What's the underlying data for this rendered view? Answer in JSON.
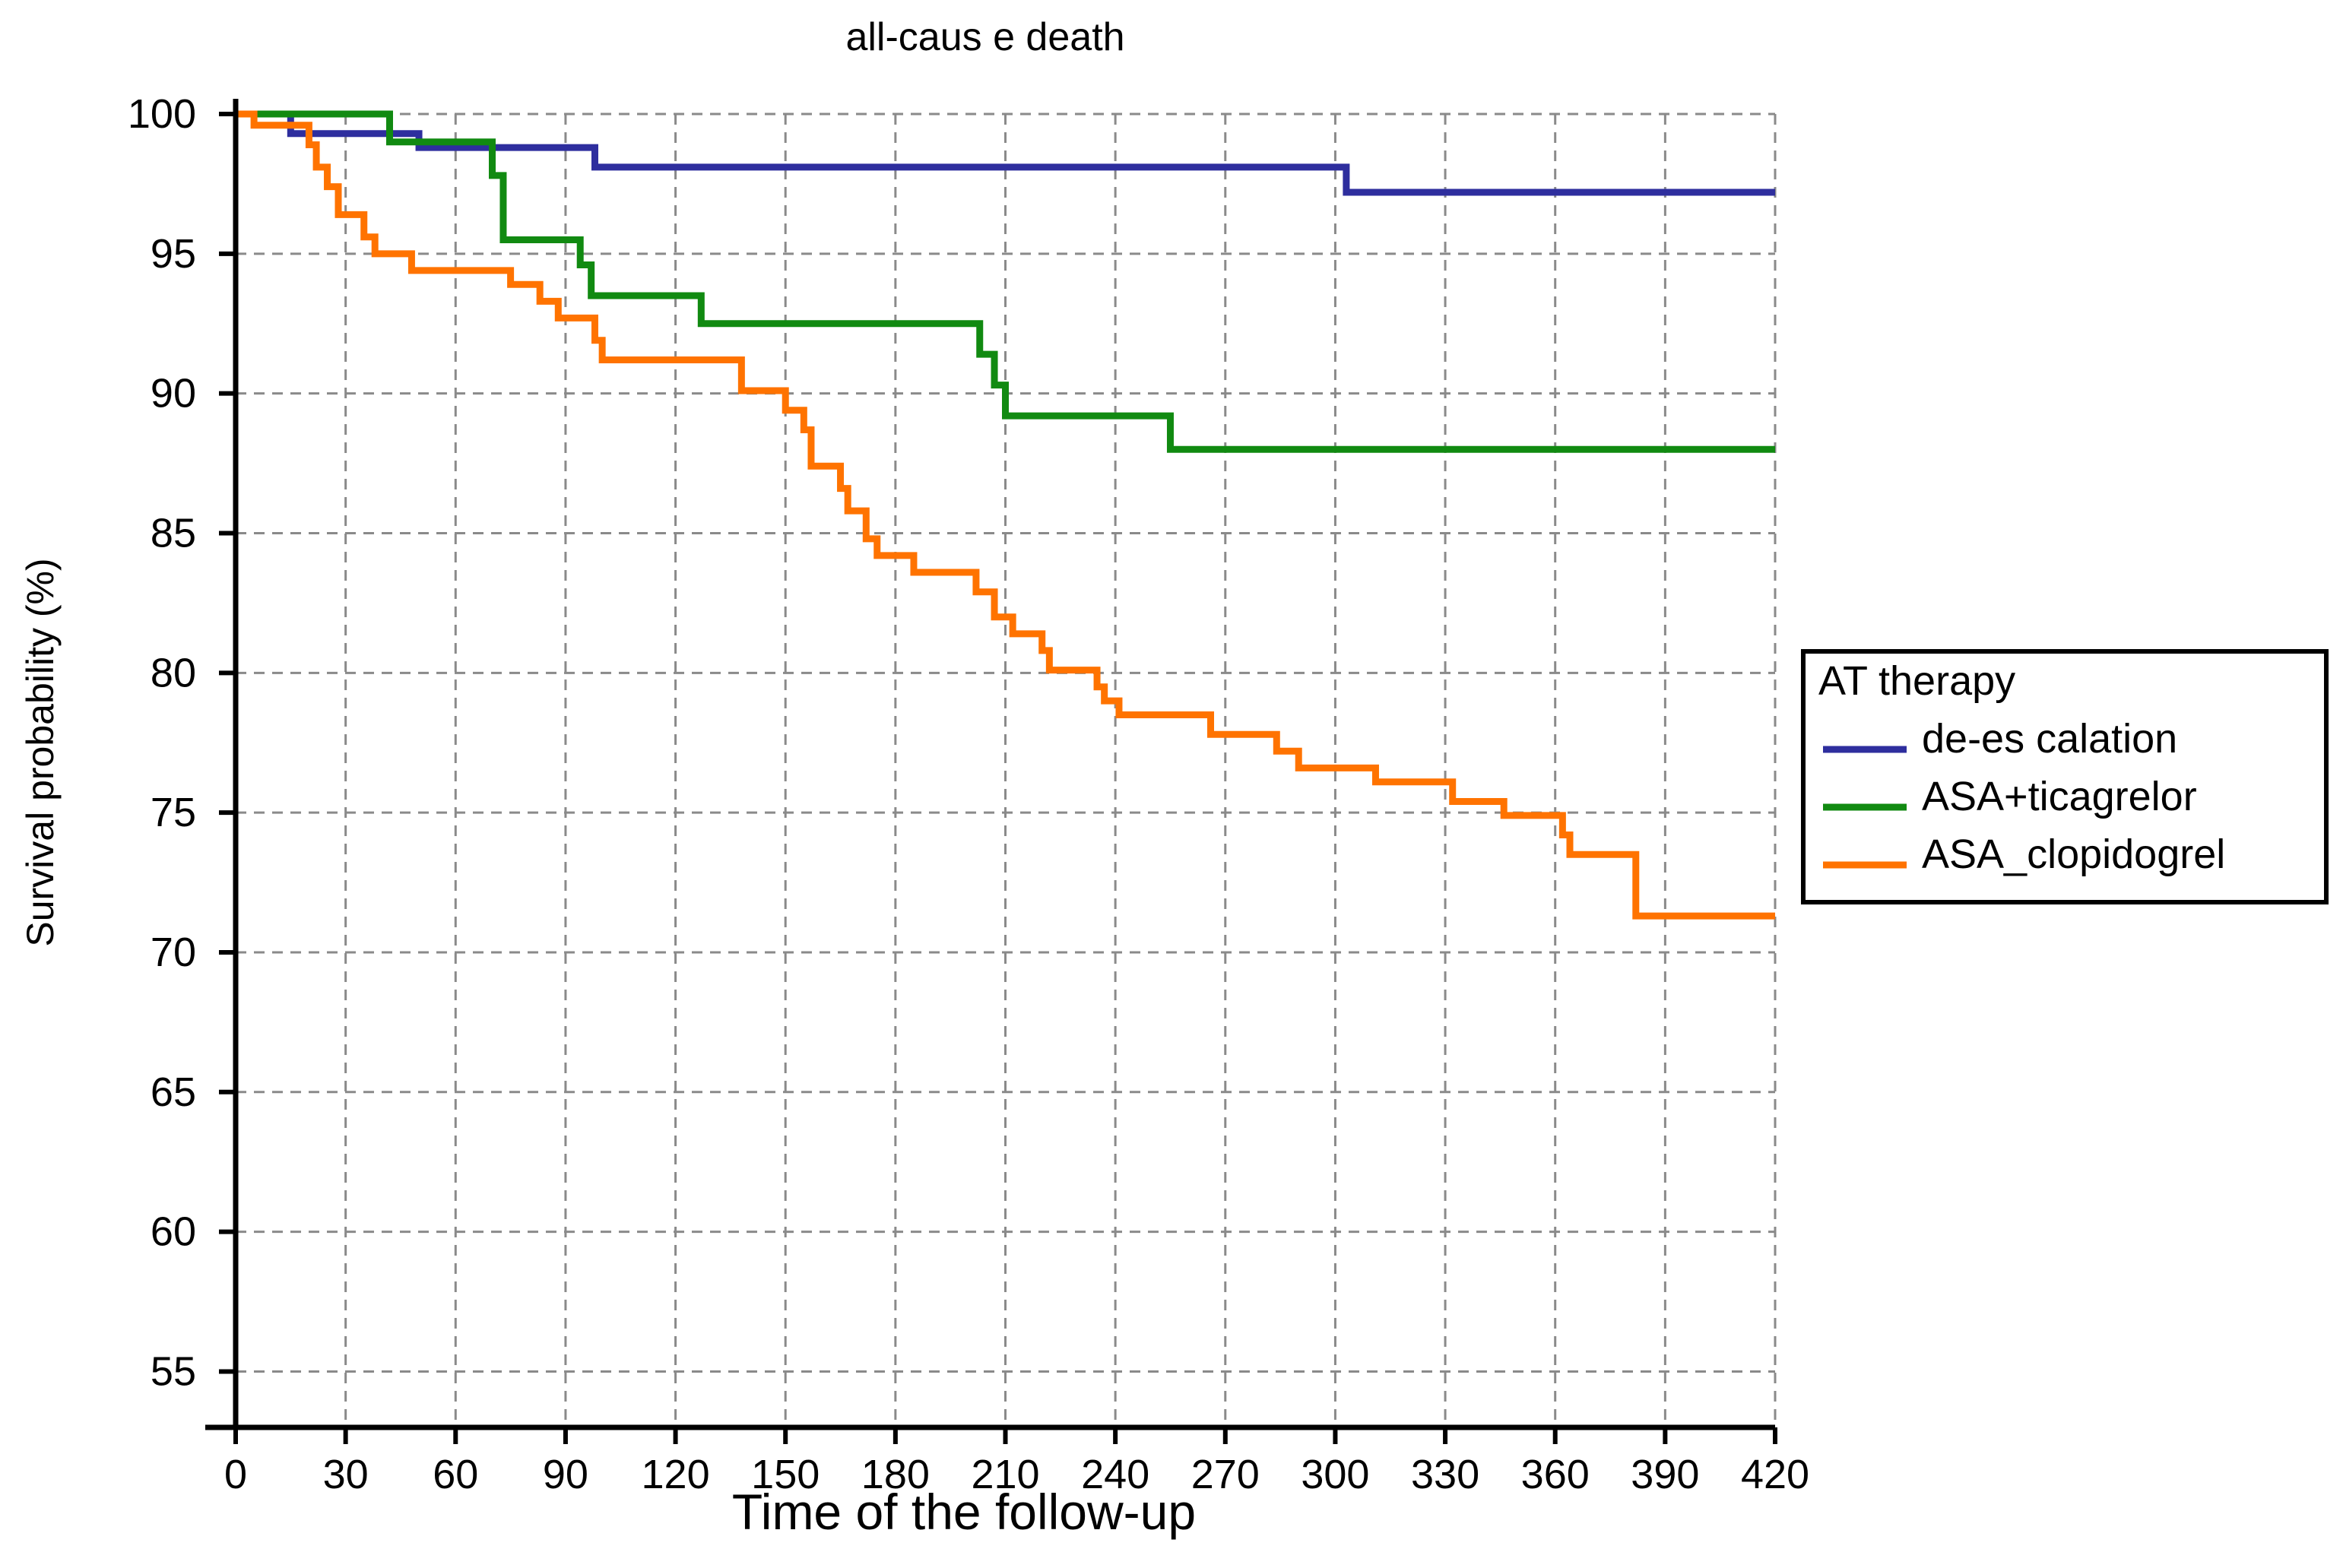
{
  "chart_data": {
    "type": "line",
    "title": "all-caus e death",
    "xlabel": "Time of the follow-up",
    "ylabel": "Survival probability (%)",
    "xlim": [
      0,
      420
    ],
    "ylim": [
      53,
      100
    ],
    "x_ticks": [
      0,
      30,
      60,
      90,
      120,
      150,
      180,
      210,
      240,
      270,
      300,
      330,
      360,
      390,
      420
    ],
    "y_ticks": [
      100,
      95,
      90,
      85,
      80,
      75,
      70,
      65,
      60,
      55
    ],
    "grid": true,
    "step": true,
    "legend": {
      "title": "AT therapy",
      "placement": "right",
      "entries": [
        "de-es calation",
        "ASA+ticagrelor",
        "ASA_clopidogrel"
      ]
    },
    "series": [
      {
        "name": "de-es calation",
        "color": "#2e2e9e",
        "points": [
          [
            0,
            100
          ],
          [
            15,
            99.3
          ],
          [
            50,
            98.8
          ],
          [
            98,
            98.1
          ],
          [
            303,
            97.2
          ],
          [
            420,
            97.2
          ]
        ]
      },
      {
        "name": "ASA+ticagrelor",
        "color": "#118a11",
        "points": [
          [
            0,
            100
          ],
          [
            42,
            99.0
          ],
          [
            70,
            97.8
          ],
          [
            73,
            95.5
          ],
          [
            94,
            94.6
          ],
          [
            97,
            93.5
          ],
          [
            127,
            92.5
          ],
          [
            203,
            91.4
          ],
          [
            207,
            90.3
          ],
          [
            210,
            89.2
          ],
          [
            255,
            88.0
          ],
          [
            420,
            88.0
          ]
        ]
      },
      {
        "name": "ASA_clopidogrel",
        "color": "#ff7300",
        "points": [
          [
            0,
            100
          ],
          [
            5,
            99.6
          ],
          [
            20,
            98.9
          ],
          [
            22,
            98.1
          ],
          [
            25,
            97.4
          ],
          [
            28,
            96.4
          ],
          [
            35,
            95.6
          ],
          [
            38,
            95.0
          ],
          [
            48,
            94.4
          ],
          [
            75,
            93.9
          ],
          [
            83,
            93.3
          ],
          [
            88,
            92.7
          ],
          [
            98,
            91.9
          ],
          [
            100,
            91.2
          ],
          [
            138,
            90.1
          ],
          [
            150,
            89.4
          ],
          [
            155,
            88.7
          ],
          [
            157,
            87.4
          ],
          [
            165,
            86.6
          ],
          [
            167,
            85.8
          ],
          [
            172,
            84.8
          ],
          [
            175,
            84.2
          ],
          [
            185,
            83.6
          ],
          [
            202,
            82.9
          ],
          [
            207,
            82.0
          ],
          [
            212,
            81.4
          ],
          [
            220,
            80.8
          ],
          [
            222,
            80.1
          ],
          [
            235,
            79.5
          ],
          [
            237,
            79.0
          ],
          [
            241,
            78.5
          ],
          [
            266,
            77.8
          ],
          [
            284,
            77.2
          ],
          [
            290,
            76.6
          ],
          [
            311,
            76.1
          ],
          [
            332,
            75.4
          ],
          [
            346,
            74.9
          ],
          [
            362,
            74.2
          ],
          [
            364,
            73.5
          ],
          [
            382,
            71.3
          ],
          [
            420,
            71.3
          ]
        ]
      }
    ]
  }
}
